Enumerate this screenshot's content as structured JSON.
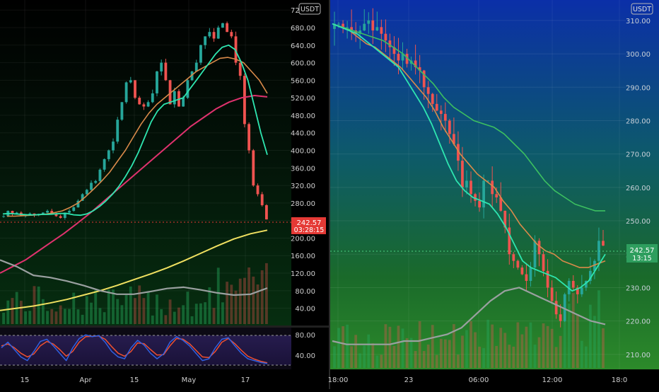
{
  "charts": {
    "left": {
      "currency": "USDT",
      "price_label": "242.57",
      "countdown": "03:28:15",
      "y_ticks": [
        "720.00",
        "680.00",
        "640.00",
        "600.00",
        "560.00",
        "520.00",
        "480.00",
        "440.00",
        "400.00",
        "360.00",
        "320.00",
        "280.00",
        "240.00",
        "200.00",
        "160.00",
        "120.00",
        "80.00",
        "40.00"
      ],
      "x_ticks": [
        "15",
        "Apr",
        "15",
        "May",
        "17"
      ],
      "osc_ticks": [
        "80.00",
        "40.00"
      ]
    },
    "right": {
      "currency": "USDT",
      "price_label": "242.57",
      "countdown": "13:15",
      "y_ticks": [
        "310.00",
        "300.00",
        "290.00",
        "280.00",
        "270.00",
        "260.00",
        "250.00",
        "240.00",
        "230.00",
        "220.00",
        "210.00"
      ],
      "x_ticks": [
        "18:00",
        "23",
        "06:00",
        "12:00",
        "18:0"
      ]
    }
  },
  "colors": {
    "up": "#26a69a",
    "down": "#ef5350",
    "ema_fast": "#2ee6b0",
    "ema_mid": "#d98a4a",
    "ema_slow_left": "#e0326e",
    "ema_200_left": "#f0e060",
    "ema_slow_right": "#3cc060",
    "volume_ma": "#9aa0a0",
    "stoch_k": "#3060e0",
    "stoch_d": "#f05030",
    "price_tag_left": "#e53935",
    "price_tag_right": "#2e9e5e"
  },
  "chart_data": [
    {
      "type": "candlestick",
      "panel": "left",
      "ylim": [
        20,
        730
      ],
      "candles_close_approx": [
        250,
        262,
        255,
        258,
        250,
        253,
        256,
        252,
        255,
        258,
        262,
        255,
        250,
        246,
        258,
        262,
        270,
        285,
        300,
        310,
        326,
        330,
        356,
        380,
        400,
        420,
        470,
        510,
        555,
        560,
        520,
        505,
        500,
        510,
        530,
        580,
        600,
        560,
        505,
        535,
        500,
        520,
        560,
        580,
        600,
        640,
        660,
        670,
        655,
        680,
        690,
        670,
        660,
        600,
        570,
        460,
        400,
        320,
        300,
        275,
        242.57
      ],
      "ema_fast_approx": [
        255,
        256,
        255,
        254,
        253,
        253,
        254,
        254,
        255,
        256,
        256,
        253,
        252,
        255,
        262,
        272,
        285,
        300,
        318,
        340,
        365,
        395,
        430,
        465,
        490,
        505,
        510,
        515,
        520,
        540,
        560,
        580,
        600,
        620,
        635,
        640,
        630,
        600,
        560,
        500,
        440,
        390
      ],
      "ema_mid_approx": [
        250,
        250,
        251,
        252,
        253,
        255,
        258,
        262,
        270,
        280,
        295,
        312,
        330,
        350,
        375,
        400,
        430,
        460,
        485,
        505,
        520,
        535,
        550,
        565,
        580,
        590,
        600,
        610,
        612,
        608,
        600,
        580,
        560,
        530
      ],
      "ema_slow_approx": [
        120,
        135,
        150,
        170,
        190,
        210,
        232,
        255,
        280,
        305,
        330,
        355,
        380,
        405,
        430,
        455,
        475,
        495,
        510,
        520,
        525,
        522
      ],
      "ema_200_approx": [
        35,
        40,
        45,
        52,
        60,
        70,
        80,
        92,
        105,
        118,
        132,
        148,
        165,
        182,
        198,
        210,
        218
      ],
      "volume_ma_approx": [
        150,
        135,
        115,
        110,
        102,
        92,
        80,
        72,
        72,
        78,
        85,
        88,
        82,
        75,
        70,
        72,
        86
      ],
      "stoch_k_approx": [
        55,
        70,
        50,
        30,
        20,
        45,
        72,
        78,
        60,
        40,
        20,
        55,
        80,
        90,
        85,
        88,
        70,
        45,
        30,
        25,
        55,
        75,
        62,
        40,
        25,
        38,
        70,
        85,
        75,
        60,
        40,
        20,
        25,
        55,
        78,
        82,
        60,
        40,
        25,
        20,
        15,
        12
      ],
      "stoch_d_approx": [
        60,
        65,
        55,
        40,
        30,
        38,
        60,
        72,
        65,
        50,
        32,
        45,
        70,
        85,
        86,
        87,
        78,
        58,
        40,
        32,
        45,
        68,
        66,
        50,
        35,
        36,
        60,
        80,
        78,
        66,
        48,
        30,
        28,
        45,
        70,
        80,
        66,
        48,
        32,
        24,
        18,
        14
      ]
    },
    {
      "type": "candlestick",
      "panel": "right",
      "ylim": [
        207,
        314
      ],
      "candles_close_approx": [
        309,
        309,
        308,
        308,
        307,
        306,
        307,
        309,
        310,
        307,
        308,
        306,
        304,
        302,
        300,
        298,
        300,
        297,
        298,
        296,
        295,
        290,
        288,
        285,
        283,
        282,
        280,
        276,
        273,
        268,
        260,
        262,
        258,
        256,
        254,
        262,
        262,
        258,
        257,
        253,
        248,
        240,
        238,
        236,
        234,
        232,
        236,
        244,
        240,
        235,
        230,
        226,
        222,
        220,
        228,
        232,
        230,
        228,
        230,
        232,
        235,
        238,
        244,
        242.57
      ],
      "ema_fast_approx": [
        309,
        308,
        307,
        306,
        304,
        302,
        300,
        298,
        296,
        292,
        288,
        284,
        279,
        273,
        267,
        262,
        259,
        257,
        256,
        255,
        252,
        248,
        243,
        238,
        236,
        235,
        234,
        233,
        231,
        229,
        230,
        232,
        236,
        240
      ],
      "ema_mid_approx": [
        309,
        308,
        307,
        305,
        303,
        302,
        300,
        298,
        296,
        293,
        290,
        287,
        283,
        278,
        274,
        270,
        267,
        264,
        262,
        260,
        256,
        253,
        249,
        246,
        243,
        241,
        240,
        238,
        237,
        236,
        236,
        237,
        238
      ],
      "ema_slow_approx": [
        309,
        308,
        307,
        306,
        305,
        304,
        302,
        300,
        297,
        294,
        291,
        287,
        284,
        282,
        280,
        279,
        278,
        276,
        273,
        270,
        266,
        262,
        259,
        257,
        255,
        254,
        253,
        253
      ],
      "volume_ma_approx": [
        214,
        213,
        213,
        213,
        213,
        214,
        214,
        215,
        216,
        218,
        222,
        226,
        229,
        230,
        228,
        226,
        224,
        222,
        220,
        219
      ]
    }
  ]
}
